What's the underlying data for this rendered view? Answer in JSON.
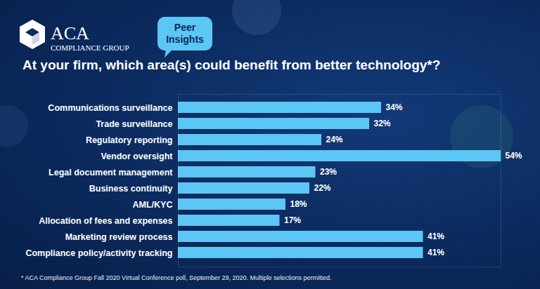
{
  "chart_data": {
    "type": "bar",
    "orientation": "horizontal",
    "title": "At your firm, which area(s) could benefit from better technology*?",
    "annotations": [
      "ACA",
      "COMPLIANCE GROUP",
      "Peer Insights",
      "* ACA Compliance Group Fall 2020 Virtual Conference poll, September 29, 2020. Multiple selections permitted."
    ],
    "categories": [
      "Communications surveillance",
      "Trade surveillance",
      "Regulatory reporting",
      "Vendor oversight",
      "Legal document management",
      "Business continuity",
      "AML/KYC",
      "Allocation of fees and expenses",
      "Marketing review process",
      "Compliance policy/activity tracking"
    ],
    "values": [
      34,
      32,
      24,
      54,
      23,
      22,
      18,
      17,
      41,
      41
    ],
    "value_labels": [
      "34%",
      "32%",
      "24%",
      "54%",
      "23%",
      "22%",
      "18%",
      "17%",
      "41%",
      "41%"
    ],
    "color": "#5cc6f4",
    "xlim": [
      0,
      54
    ],
    "grid": false,
    "data_labels": true,
    "tick_labels": "y"
  }
}
